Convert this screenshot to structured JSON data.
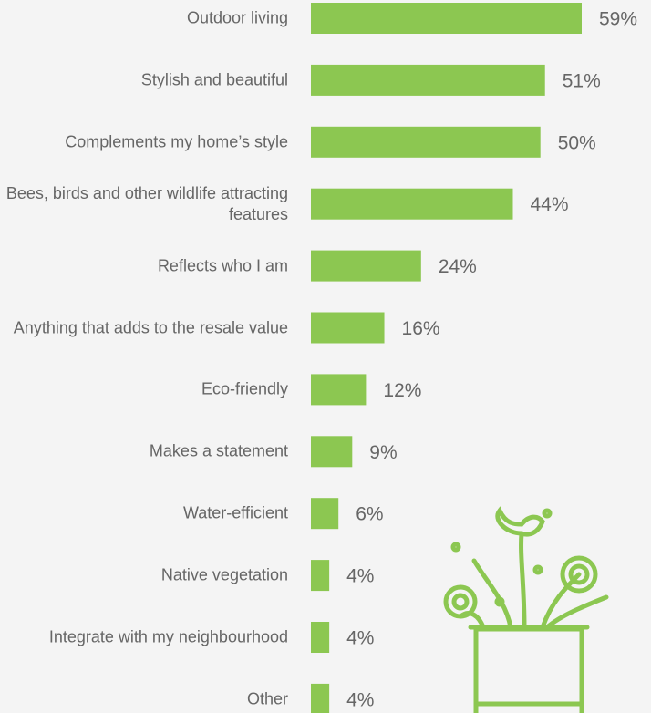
{
  "chart_data": {
    "type": "bar",
    "orientation": "horizontal",
    "categories": [
      "Outdoor living",
      "Stylish and beautiful",
      "Complements my home’s style",
      "Bees, birds and other wildlife attracting features",
      "Reflects who I am",
      "Anything that adds to the resale value",
      "Eco-friendly",
      "Makes a statement",
      "Water-efficient",
      "Native vegetation",
      "Integrate with my neighbourhood",
      "Other"
    ],
    "values": [
      59,
      51,
      50,
      44,
      24,
      16,
      12,
      9,
      6,
      4,
      4,
      4
    ],
    "value_labels": [
      "59%",
      "51%",
      "50%",
      "44%",
      "24%",
      "16%",
      "12%",
      "9%",
      "6%",
      "4%",
      "4%",
      "4%"
    ],
    "color": "#8cc751"
  }
}
